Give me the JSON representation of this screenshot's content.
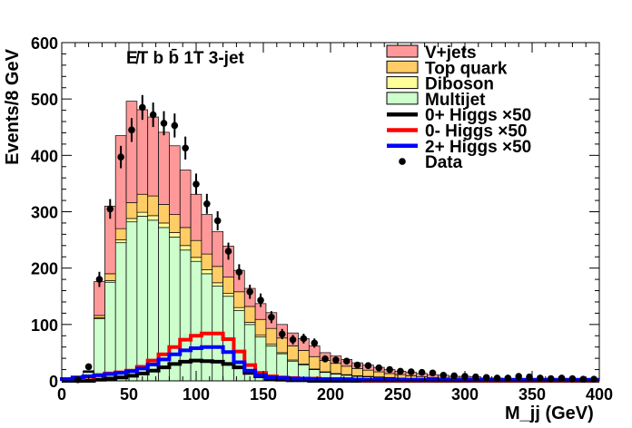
{
  "chart_data": {
    "type": "histogram-stacked",
    "title": "",
    "annotation": "E̸T b b̄ 1T 3-jet",
    "xlabel": "M_jj (GeV)",
    "ylabel": "Events/8 GeV",
    "xlim": [
      0,
      400
    ],
    "ylim": [
      0,
      600
    ],
    "bin_width": 8,
    "x_ticks": [
      "0",
      "50",
      "100",
      "150",
      "200",
      "250",
      "300",
      "350",
      "400"
    ],
    "y_ticks": [
      "0",
      "100",
      "200",
      "300",
      "400",
      "500",
      "600"
    ],
    "legend_position": "top-right",
    "bin_edges": [
      0,
      8,
      16,
      24,
      32,
      40,
      48,
      56,
      64,
      72,
      80,
      88,
      96,
      104,
      112,
      120,
      128,
      136,
      144,
      152,
      160,
      168,
      176,
      184,
      192,
      200,
      208,
      216,
      224,
      232,
      240,
      248,
      256,
      264,
      272,
      280,
      288,
      296,
      304,
      312,
      320,
      328,
      336,
      344,
      352,
      360,
      368,
      376,
      384,
      392,
      400
    ],
    "stack": [
      {
        "name": "Multijet",
        "color": "#ccffcc",
        "values": [
          0,
          0,
          15,
          110,
          175,
          245,
          282,
          292,
          285,
          272,
          255,
          232,
          212,
          190,
          168,
          150,
          125,
          100,
          78,
          62,
          48,
          35,
          28,
          20,
          15,
          12,
          10,
          8,
          7,
          6,
          5,
          4,
          4,
          3,
          3,
          2,
          2,
          2,
          2,
          1,
          1,
          1,
          1,
          1,
          1,
          1,
          1,
          0,
          0,
          0
        ]
      },
      {
        "name": "Diboson",
        "color": "#ffff99",
        "values": [
          0,
          0,
          1,
          2,
          3,
          5,
          6,
          7,
          8,
          8,
          8,
          8,
          7,
          7,
          6,
          5,
          5,
          4,
          3,
          3,
          2,
          2,
          2,
          1,
          1,
          1,
          1,
          1,
          1,
          1,
          1,
          1,
          0,
          0,
          0,
          0,
          0,
          0,
          0,
          0,
          0,
          0,
          0,
          0,
          0,
          0,
          0,
          0,
          0,
          0
        ]
      },
      {
        "name": "Top quark",
        "color": "#ffcc66",
        "values": [
          0,
          0,
          1,
          4,
          12,
          20,
          28,
          32,
          35,
          33,
          32,
          32,
          30,
          28,
          29,
          29,
          28,
          28,
          28,
          28,
          26,
          25,
          24,
          22,
          20,
          18,
          15,
          13,
          11,
          9,
          7,
          6,
          5,
          4,
          3,
          3,
          2,
          2,
          2,
          1,
          1,
          1,
          1,
          1,
          1,
          0,
          0,
          0,
          0,
          0
        ]
      },
      {
        "name": "V+jets",
        "color": "#ff9999",
        "values": [
          0,
          0,
          1,
          60,
          120,
          165,
          180,
          150,
          140,
          128,
          122,
          102,
          82,
          70,
          62,
          55,
          38,
          32,
          28,
          28,
          24,
          23,
          21,
          19,
          14,
          13,
          12,
          10,
          9,
          8,
          7,
          6,
          6,
          6,
          5,
          5,
          4,
          4,
          3,
          3,
          3,
          2,
          2,
          2,
          2,
          2,
          2,
          1,
          1,
          1
        ]
      }
    ],
    "signals": [
      {
        "name": "0+ Higgs × 50",
        "color": "#000000",
        "values": [
          0,
          0,
          0,
          2,
          4,
          6,
          9,
          13,
          18,
          24,
          30,
          34,
          36,
          35,
          34,
          30,
          24,
          14,
          8,
          4,
          2,
          1,
          1,
          0,
          0,
          0,
          0,
          0,
          0,
          0,
          0,
          0,
          0,
          0,
          0,
          0,
          0,
          0,
          0,
          0,
          0,
          0,
          0,
          0,
          0,
          0,
          0,
          0,
          0,
          0
        ]
      },
      {
        "name": "0- Higgs × 50",
        "color": "#ff0000",
        "values": [
          3,
          5,
          7,
          10,
          13,
          15,
          18,
          25,
          36,
          47,
          60,
          73,
          80,
          84,
          84,
          74,
          52,
          28,
          14,
          8,
          6,
          5,
          4,
          4,
          3,
          3,
          2,
          2,
          1,
          1,
          1,
          1,
          1,
          1,
          1,
          1,
          1,
          1,
          1,
          1,
          1,
          1,
          1,
          1,
          1,
          1,
          1,
          1,
          1,
          1
        ]
      },
      {
        "name": "2+ Higgs × 50",
        "color": "#0000ff",
        "values": [
          3,
          6,
          8,
          10,
          12,
          14,
          17,
          22,
          29,
          38,
          47,
          54,
          58,
          60,
          60,
          51,
          33,
          18,
          10,
          6,
          5,
          4,
          4,
          3,
          3,
          3,
          3,
          2,
          2,
          2,
          2,
          2,
          2,
          2,
          2,
          2,
          2,
          2,
          2,
          2,
          2,
          2,
          2,
          2,
          2,
          2,
          2,
          2,
          2,
          2
        ]
      }
    ],
    "data_points": {
      "name": "Data",
      "x": [
        12,
        20,
        28,
        36,
        44,
        52,
        60,
        68,
        76,
        84,
        92,
        100,
        108,
        116,
        124,
        132,
        140,
        148,
        156,
        164,
        172,
        180,
        188,
        196,
        204,
        212,
        220,
        228,
        236,
        244,
        252,
        260,
        268,
        276,
        284,
        292,
        300,
        308,
        316,
        324,
        332,
        340,
        348,
        356,
        364,
        372,
        380,
        388,
        396
      ],
      "y": [
        2,
        25,
        180,
        305,
        397,
        445,
        485,
        472,
        457,
        453,
        413,
        349,
        314,
        284,
        230,
        193,
        158,
        143,
        113,
        83,
        73,
        75,
        67,
        39,
        37,
        35,
        28,
        27,
        23,
        20,
        17,
        16,
        15,
        14,
        10,
        9,
        8,
        7,
        6,
        5,
        5,
        8,
        7,
        5,
        4,
        5,
        4,
        3,
        3
      ]
    }
  },
  "legend": [
    {
      "label": "V+jets",
      "kind": "box",
      "color": "#ff9999"
    },
    {
      "label": "Top quark",
      "kind": "box",
      "color": "#ffcc66"
    },
    {
      "label": "Diboson",
      "kind": "box",
      "color": "#ffff99"
    },
    {
      "label": "Multijet",
      "kind": "box",
      "color": "#ccffcc"
    },
    {
      "label": "0+ Higgs ×50",
      "kind": "line",
      "color": "#000000"
    },
    {
      "label": "0- Higgs ×50",
      "kind": "line",
      "color": "#ff0000"
    },
    {
      "label": "2+ Higgs ×50",
      "kind": "line",
      "color": "#0000ff"
    },
    {
      "label": "Data",
      "kind": "marker",
      "color": "#000000"
    }
  ]
}
